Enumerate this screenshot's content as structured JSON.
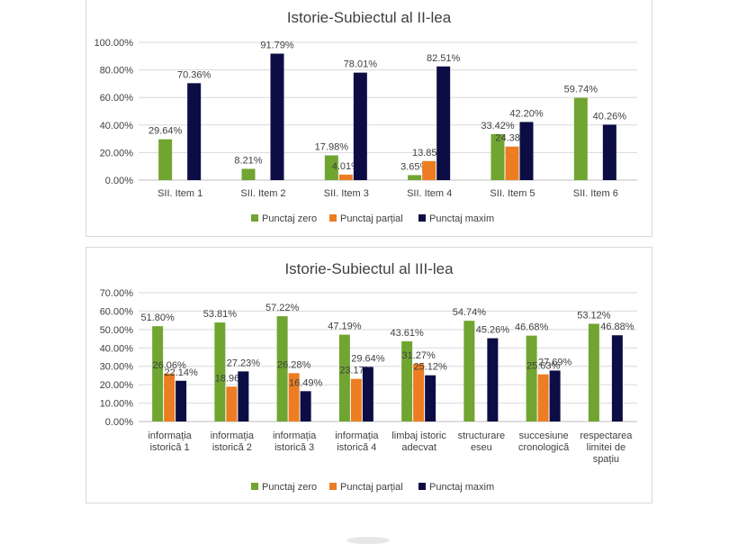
{
  "colors": {
    "zero": "#70a531",
    "partial": "#ed7d22",
    "max": "#0d0d45"
  },
  "charts": [
    {
      "title": "Istorie-Subiectul al II-lea",
      "legend": [
        "Punctaj zero",
        "Punctaj parțial",
        "Punctaj maxim"
      ],
      "yticks": [
        "100.00%",
        "80.00%",
        "60.00%",
        "40.00%",
        "20.00%",
        "0.00%"
      ]
    },
    {
      "title": "Istorie-Subiectul al III-lea",
      "legend": [
        "Punctaj zero",
        "Punctaj parțial",
        "Punctaj maxim"
      ],
      "yticks": [
        "70.00%",
        "60.00%",
        "50.00%",
        "40.00%",
        "30.00%",
        "20.00%",
        "10.00%",
        "0.00%"
      ]
    }
  ],
  "chart_data": [
    {
      "type": "bar",
      "title": "Istorie-Subiectul al II-lea",
      "categories": [
        "SII. Item 1",
        "SII. Item 2",
        "SII. Item 3",
        "SII. Item 4",
        "SII. Item 5",
        "SII. Item 6"
      ],
      "series": [
        {
          "name": "Punctaj zero",
          "values": [
            29.64,
            8.21,
            17.98,
            3.65,
            33.42,
            59.74
          ],
          "labels": [
            "29.64%",
            "8.21%",
            "17.98%",
            "3.65%",
            "33.42%",
            "59.74%"
          ]
        },
        {
          "name": "Punctaj parțial",
          "values": [
            null,
            null,
            4.01,
            13.85,
            24.38,
            null
          ],
          "labels": [
            null,
            null,
            "4.01%",
            "13.85%",
            "24.38%",
            null
          ]
        },
        {
          "name": "Punctaj maxim",
          "values": [
            70.36,
            91.79,
            78.01,
            82.51,
            42.2,
            40.26
          ],
          "labels": [
            "70.36%",
            "91.79%",
            "78.01%",
            "82.51%",
            "42.20%",
            "40.26%"
          ]
        }
      ],
      "ylim": [
        0,
        100
      ],
      "grid": true,
      "legend_position": "bottom"
    },
    {
      "type": "bar",
      "title": "Istorie-Subiectul al III-lea",
      "categories": [
        [
          "informația",
          "istorică 1"
        ],
        [
          "informația",
          "istorică 2"
        ],
        [
          "informația",
          "istorică 3"
        ],
        [
          "informația",
          "istorică 4"
        ],
        [
          "limbaj istoric",
          "adecvat"
        ],
        [
          "structurare",
          "eseu"
        ],
        [
          "succesiune",
          "cronologică"
        ],
        [
          "respectarea",
          "limitei de",
          "spațiu"
        ]
      ],
      "series": [
        {
          "name": "Punctaj zero",
          "values": [
            51.8,
            53.81,
            57.22,
            47.19,
            43.61,
            54.74,
            46.68,
            53.12
          ],
          "labels": [
            "51.80%",
            "53.81%",
            "57.22%",
            "47.19%",
            "43.61%",
            "54.74%",
            "46.68%",
            "53.12%"
          ]
        },
        {
          "name": "Punctaj parțial",
          "values": [
            26.06,
            18.96,
            26.28,
            23.17,
            31.27,
            null,
            25.63,
            null
          ],
          "labels": [
            "26.06%",
            "18.96%",
            "26.28%",
            "23.17%",
            "31.27%",
            null,
            "25.63%",
            null
          ]
        },
        {
          "name": "Punctaj maxim",
          "values": [
            22.14,
            27.23,
            16.49,
            29.64,
            25.12,
            45.26,
            27.69,
            46.88
          ],
          "labels": [
            "22.14%",
            "27.23%",
            "16.49%",
            "29.64%",
            "25.12%",
            "45.26%",
            "27.69%",
            "46.88%"
          ]
        }
      ],
      "ylim": [
        0,
        70
      ],
      "grid": true,
      "legend_position": "bottom"
    }
  ]
}
